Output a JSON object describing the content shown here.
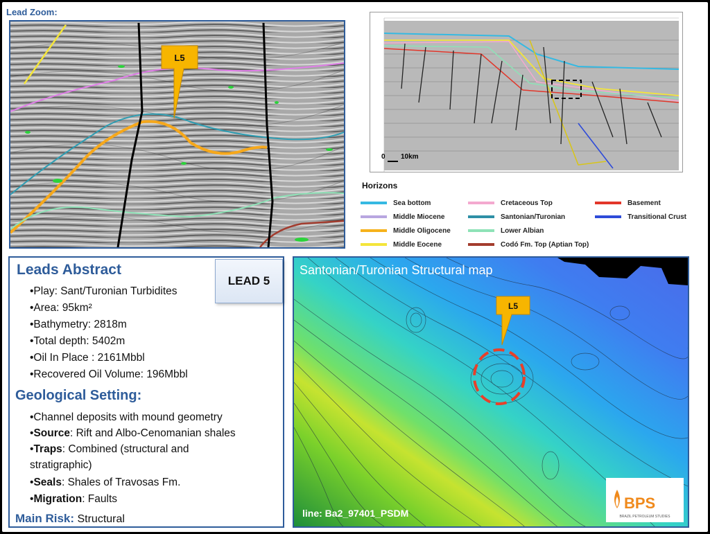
{
  "lead_zoom_label": "Lead Zoom:",
  "zoom_callout": "L5",
  "section_scale_label": "10km",
  "section_scale_zero": "0",
  "legend": {
    "title": "Horizons",
    "items": [
      {
        "label": "Sea bottom",
        "color": "#35B9E2"
      },
      {
        "label": "Middle Miocene",
        "color": "#B8A6E0"
      },
      {
        "label": "Middle Oligocene",
        "color": "#F6B21B"
      },
      {
        "label": "Middle Eocene",
        "color": "#F4E53A"
      },
      {
        "label": "Cretaceous Top",
        "color": "#F4A9CF"
      },
      {
        "label": "Santonian/Turonian",
        "color": "#2E8FA6"
      },
      {
        "label": "Lower Albian",
        "color": "#8EE2B7"
      },
      {
        "label": "Codó Fm. Top (Aptian Top)",
        "color": "#A33C2E"
      },
      {
        "label": "Basement",
        "color": "#E2362A"
      },
      {
        "label": "Transitional Crust",
        "color": "#2E4BD9"
      }
    ]
  },
  "abstract": {
    "title": "Leads Abstract",
    "lead_label": "LEAD 5",
    "bullets": [
      "•Play: Sant/Turonian Turbidites",
      "•Area: 95km²",
      "•Bathymetry: 2818m",
      "•Total depth: 5402m",
      "•Oil  In Place : 2161Mbbl",
      "•Recovered Oil Volume: 196Mbbl"
    ],
    "geo_title": "Geological Setting:",
    "geo": [
      {
        "bold": "",
        "text": "•Channel deposits with mound geometry"
      },
      {
        "bold": "Source",
        "text": ": Rift and Albo-Cenomanian shales"
      },
      {
        "bold": "Traps",
        "text": ": Combined (structural and"
      },
      {
        "bold": "",
        "text": "stratigraphic)"
      },
      {
        "bold": "Seals",
        "text": ": Shales of Travosas Fm."
      },
      {
        "bold": "Migration",
        "text": ": Faults"
      }
    ],
    "risk_label": "Main Risk:",
    "risk_value": " Structural"
  },
  "map": {
    "title": "Santonian/Turonian Structural map",
    "callout": "L5",
    "line_label": "line: Ba2_97401_PSDM",
    "logo_text": "BPS",
    "logo_sub": "BRAZIL PETROLEUM STUDIES"
  },
  "colors": {
    "accent": "#2E5C9A",
    "callout": "#F7B500",
    "risk_circle": "#E8402A"
  }
}
